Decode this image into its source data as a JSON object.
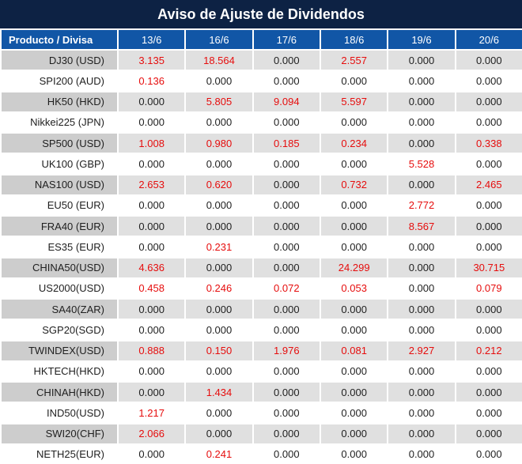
{
  "title": "Aviso de Ajuste de Dividendos",
  "table": {
    "product_header": "Producto / Divisa",
    "date_headers": [
      "13/6",
      "16/6",
      "17/6",
      "18/6",
      "19/6",
      "20/6"
    ],
    "rows": [
      {
        "product": "DJ30 (USD)",
        "values": [
          "3.135",
          "18.564",
          "0.000",
          "2.557",
          "0.000",
          "0.000"
        ],
        "red": [
          1,
          1,
          0,
          1,
          0,
          0
        ]
      },
      {
        "product": "SPI200 (AUD)",
        "values": [
          "0.136",
          "0.000",
          "0.000",
          "0.000",
          "0.000",
          "0.000"
        ],
        "red": [
          1,
          0,
          0,
          0,
          0,
          0
        ]
      },
      {
        "product": "HK50 (HKD)",
        "values": [
          "0.000",
          "5.805",
          "9.094",
          "5.597",
          "0.000",
          "0.000"
        ],
        "red": [
          0,
          1,
          1,
          1,
          0,
          0
        ]
      },
      {
        "product": "Nikkei225 (JPN)",
        "values": [
          "0.000",
          "0.000",
          "0.000",
          "0.000",
          "0.000",
          "0.000"
        ],
        "red": [
          0,
          0,
          0,
          0,
          0,
          0
        ]
      },
      {
        "product": "SP500 (USD)",
        "values": [
          "1.008",
          "0.980",
          "0.185",
          "0.234",
          "0.000",
          "0.338"
        ],
        "red": [
          1,
          1,
          1,
          1,
          0,
          1
        ]
      },
      {
        "product": "UK100 (GBP)",
        "values": [
          "0.000",
          "0.000",
          "0.000",
          "0.000",
          "5.528",
          "0.000"
        ],
        "red": [
          0,
          0,
          0,
          0,
          1,
          0
        ]
      },
      {
        "product": "NAS100 (USD)",
        "values": [
          "2.653",
          "0.620",
          "0.000",
          "0.732",
          "0.000",
          "2.465"
        ],
        "red": [
          1,
          1,
          0,
          1,
          0,
          1
        ]
      },
      {
        "product": "EU50 (EUR)",
        "values": [
          "0.000",
          "0.000",
          "0.000",
          "0.000",
          "2.772",
          "0.000"
        ],
        "red": [
          0,
          0,
          0,
          0,
          1,
          0
        ]
      },
      {
        "product": "FRA40 (EUR)",
        "values": [
          "0.000",
          "0.000",
          "0.000",
          "0.000",
          "8.567",
          "0.000"
        ],
        "red": [
          0,
          0,
          0,
          0,
          1,
          0
        ]
      },
      {
        "product": "ES35 (EUR)",
        "values": [
          "0.000",
          "0.231",
          "0.000",
          "0.000",
          "0.000",
          "0.000"
        ],
        "red": [
          0,
          1,
          0,
          0,
          0,
          0
        ]
      },
      {
        "product": "CHINA50(USD)",
        "values": [
          "4.636",
          "0.000",
          "0.000",
          "24.299",
          "0.000",
          "30.715"
        ],
        "red": [
          1,
          0,
          0,
          1,
          0,
          1
        ]
      },
      {
        "product": "US2000(USD)",
        "values": [
          "0.458",
          "0.246",
          "0.072",
          "0.053",
          "0.000",
          "0.079"
        ],
        "red": [
          1,
          1,
          1,
          1,
          0,
          1
        ]
      },
      {
        "product": "SA40(ZAR)",
        "values": [
          "0.000",
          "0.000",
          "0.000",
          "0.000",
          "0.000",
          "0.000"
        ],
        "red": [
          0,
          0,
          0,
          0,
          0,
          0
        ]
      },
      {
        "product": "SGP20(SGD)",
        "values": [
          "0.000",
          "0.000",
          "0.000",
          "0.000",
          "0.000",
          "0.000"
        ],
        "red": [
          0,
          0,
          0,
          0,
          0,
          0
        ]
      },
      {
        "product": "TWINDEX(USD)",
        "values": [
          "0.888",
          "0.150",
          "1.976",
          "0.081",
          "2.927",
          "0.212"
        ],
        "red": [
          1,
          1,
          1,
          1,
          1,
          1
        ]
      },
      {
        "product": "HKTECH(HKD)",
        "values": [
          "0.000",
          "0.000",
          "0.000",
          "0.000",
          "0.000",
          "0.000"
        ],
        "red": [
          0,
          0,
          0,
          0,
          0,
          0
        ]
      },
      {
        "product": "CHINAH(HKD)",
        "values": [
          "0.000",
          "1.434",
          "0.000",
          "0.000",
          "0.000",
          "0.000"
        ],
        "red": [
          0,
          1,
          0,
          0,
          0,
          0
        ]
      },
      {
        "product": "IND50(USD)",
        "values": [
          "1.217",
          "0.000",
          "0.000",
          "0.000",
          "0.000",
          "0.000"
        ],
        "red": [
          1,
          0,
          0,
          0,
          0,
          0
        ]
      },
      {
        "product": "SWI20(CHF)",
        "values": [
          "2.066",
          "0.000",
          "0.000",
          "0.000",
          "0.000",
          "0.000"
        ],
        "red": [
          1,
          0,
          0,
          0,
          0,
          0
        ]
      },
      {
        "product": "NETH25(EUR)",
        "values": [
          "0.000",
          "0.241",
          "0.000",
          "0.000",
          "0.000",
          "0.000"
        ],
        "red": [
          0,
          1,
          0,
          0,
          0,
          0
        ]
      }
    ]
  },
  "colors": {
    "title_bg": "#0d2244",
    "header_bg": "#1156a6",
    "row_gray_label": "#cdcdcd",
    "row_gray_cell": "#e0e0e0",
    "value_red": "#e60d0d",
    "value_black": "#1f1f1f"
  }
}
